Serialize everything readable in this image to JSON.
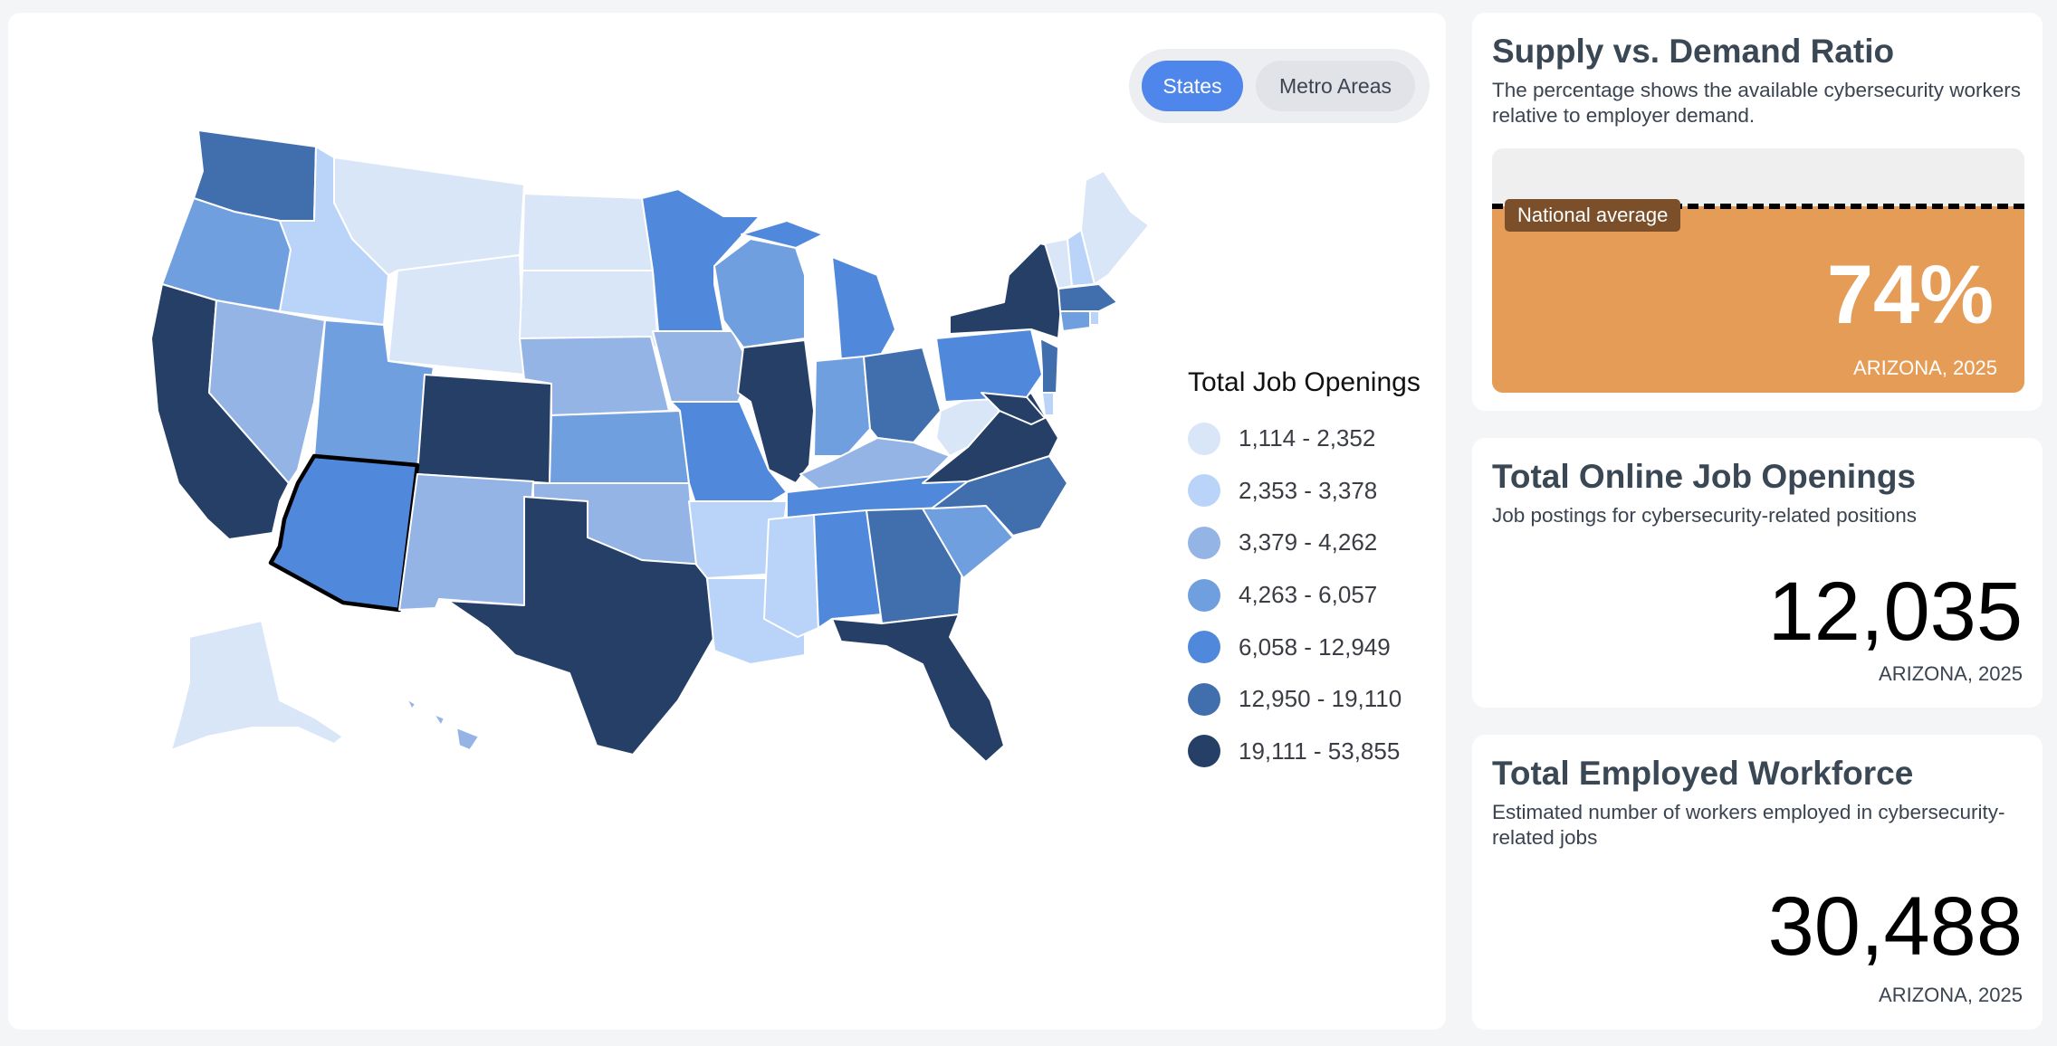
{
  "toggle": {
    "states_label": "States",
    "metro_label": "Metro Areas",
    "active": "States"
  },
  "legend": {
    "title": "Total Job Openings",
    "items": [
      {
        "label": "1,114 - 2,352",
        "color": "#d8e6f8"
      },
      {
        "label": "2,353 - 3,378",
        "color": "#b9d4f8"
      },
      {
        "label": "3,379 - 4,262",
        "color": "#93b4e4"
      },
      {
        "label": "4,263 - 6,057",
        "color": "#709fdf"
      },
      {
        "label": "6,058 - 12,949",
        "color": "#5089dc"
      },
      {
        "label": "12,950 - 19,110",
        "color": "#416ead"
      },
      {
        "label": "19,111 - 53,855",
        "color": "#253f66"
      }
    ]
  },
  "map": {
    "selected_state": "Arizona"
  },
  "ratio_card": {
    "title": "Supply vs. Demand Ratio",
    "description": "The percentage shows the available cybersecurity workers relative to employer demand.",
    "national_average_label": "National average",
    "value_text": "74%",
    "value": 0.74,
    "subtitle": "ARIZONA, 2025"
  },
  "openings_card": {
    "title": "Total Online Job Openings",
    "description": "Job postings for cybersecurity-related positions",
    "value": "12,035",
    "subtitle": "ARIZONA, 2025"
  },
  "workforce_card": {
    "title": "Total Employed Workforce",
    "description": "Estimated number of workers employed in cybersecurity-related jobs",
    "value": "30,488",
    "subtitle": "ARIZONA, 2025"
  }
}
